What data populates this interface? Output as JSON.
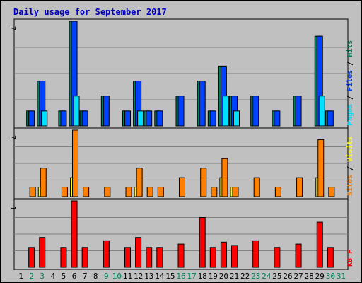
{
  "chart_data": {
    "type": "bar",
    "title": "Daily usage for September 2017",
    "categories": [
      "1",
      "2",
      "3",
      "4",
      "5",
      "6",
      "7",
      "8",
      "9",
      "10",
      "11",
      "12",
      "13",
      "14",
      "15",
      "16",
      "17",
      "18",
      "19",
      "20",
      "21",
      "22",
      "23",
      "24",
      "25",
      "26",
      "27",
      "28",
      "29",
      "30",
      "31"
    ],
    "weekend_days": [
      "2",
      "3",
      "9",
      "10",
      "16",
      "17",
      "23",
      "24",
      "30",
      "31"
    ],
    "panels": [
      {
        "id": "hits-files-pages",
        "ymax": 7,
        "ymax_label": "7",
        "axis_labels": [
          {
            "text": "Pages",
            "color": "#00e0ff"
          },
          {
            "text": " / ",
            "color": "#000000"
          },
          {
            "text": "Files",
            "color": "#0040ff"
          },
          {
            "text": " / ",
            "color": "#000000"
          },
          {
            "text": "Hits",
            "color": "#00805c"
          }
        ],
        "series": [
          {
            "name": "Hits",
            "color": "#00805c",
            "values": [
              0,
              1,
              3,
              0,
              1,
              7,
              1,
              0,
              2,
              0,
              1,
              3,
              1,
              1,
              0,
              2,
              0,
              3,
              1,
              4,
              2,
              0,
              2,
              0,
              1,
              0,
              2,
              0,
              6,
              1,
              0
            ]
          },
          {
            "name": "Files",
            "color": "#0040ff",
            "values": [
              0,
              1,
              3,
              0,
              1,
              7,
              1,
              0,
              2,
              0,
              1,
              3,
              1,
              1,
              0,
              2,
              0,
              3,
              1,
              4,
              2,
              0,
              2,
              0,
              1,
              0,
              2,
              0,
              6,
              1,
              0
            ]
          },
          {
            "name": "Pages",
            "color": "#00e0ff",
            "values": [
              0,
              0,
              1,
              0,
              0,
              2,
              0,
              0,
              0,
              0,
              0,
              1,
              0,
              0,
              0,
              0,
              0,
              0,
              0,
              2,
              1,
              0,
              0,
              0,
              0,
              0,
              0,
              0,
              2,
              0,
              0
            ]
          }
        ]
      },
      {
        "id": "visits-sites",
        "ymax": 7,
        "ymax_label": "7",
        "axis_labels": [
          {
            "text": "Sites",
            "color": "#ff8000"
          },
          {
            "text": " / ",
            "color": "#000000"
          },
          {
            "text": "Visits",
            "color": "#ffff00"
          }
        ],
        "series": [
          {
            "name": "Visits",
            "color": "#ffff00",
            "values": [
              0,
              0,
              1,
              0,
              0,
              2,
              0,
              0,
              0,
              0,
              0,
              1,
              0,
              0,
              0,
              0,
              0,
              0,
              0,
              2,
              1,
              0,
              0,
              0,
              0,
              0,
              0,
              0,
              2,
              0,
              0
            ]
          },
          {
            "name": "Sites",
            "color": "#ff8000",
            "values": [
              0,
              1,
              3,
              0,
              1,
              7,
              1,
              0,
              1,
              0,
              1,
              3,
              1,
              1,
              0,
              2,
              0,
              3,
              1,
              4,
              1,
              0,
              2,
              0,
              1,
              0,
              2,
              0,
              6,
              1,
              0
            ]
          }
        ]
      },
      {
        "id": "kbf",
        "ymax": 1,
        "ymax_label": "1",
        "axis_labels": [
          {
            "text": "KB F",
            "color": "#ff0000"
          }
        ],
        "series": [
          {
            "name": "KB F",
            "color": "#ff0000",
            "values": [
              0,
              0.3,
              0.45,
              0,
              0.3,
              1.0,
              0.3,
              0,
              0.4,
              0,
              0.3,
              0.45,
              0.3,
              0.3,
              0,
              0.35,
              0,
              0.75,
              0.3,
              0.38,
              0.33,
              0,
              0.4,
              0,
              0.3,
              0,
              0.35,
              0,
              0.68,
              0.3,
              0
            ]
          }
        ]
      }
    ]
  }
}
